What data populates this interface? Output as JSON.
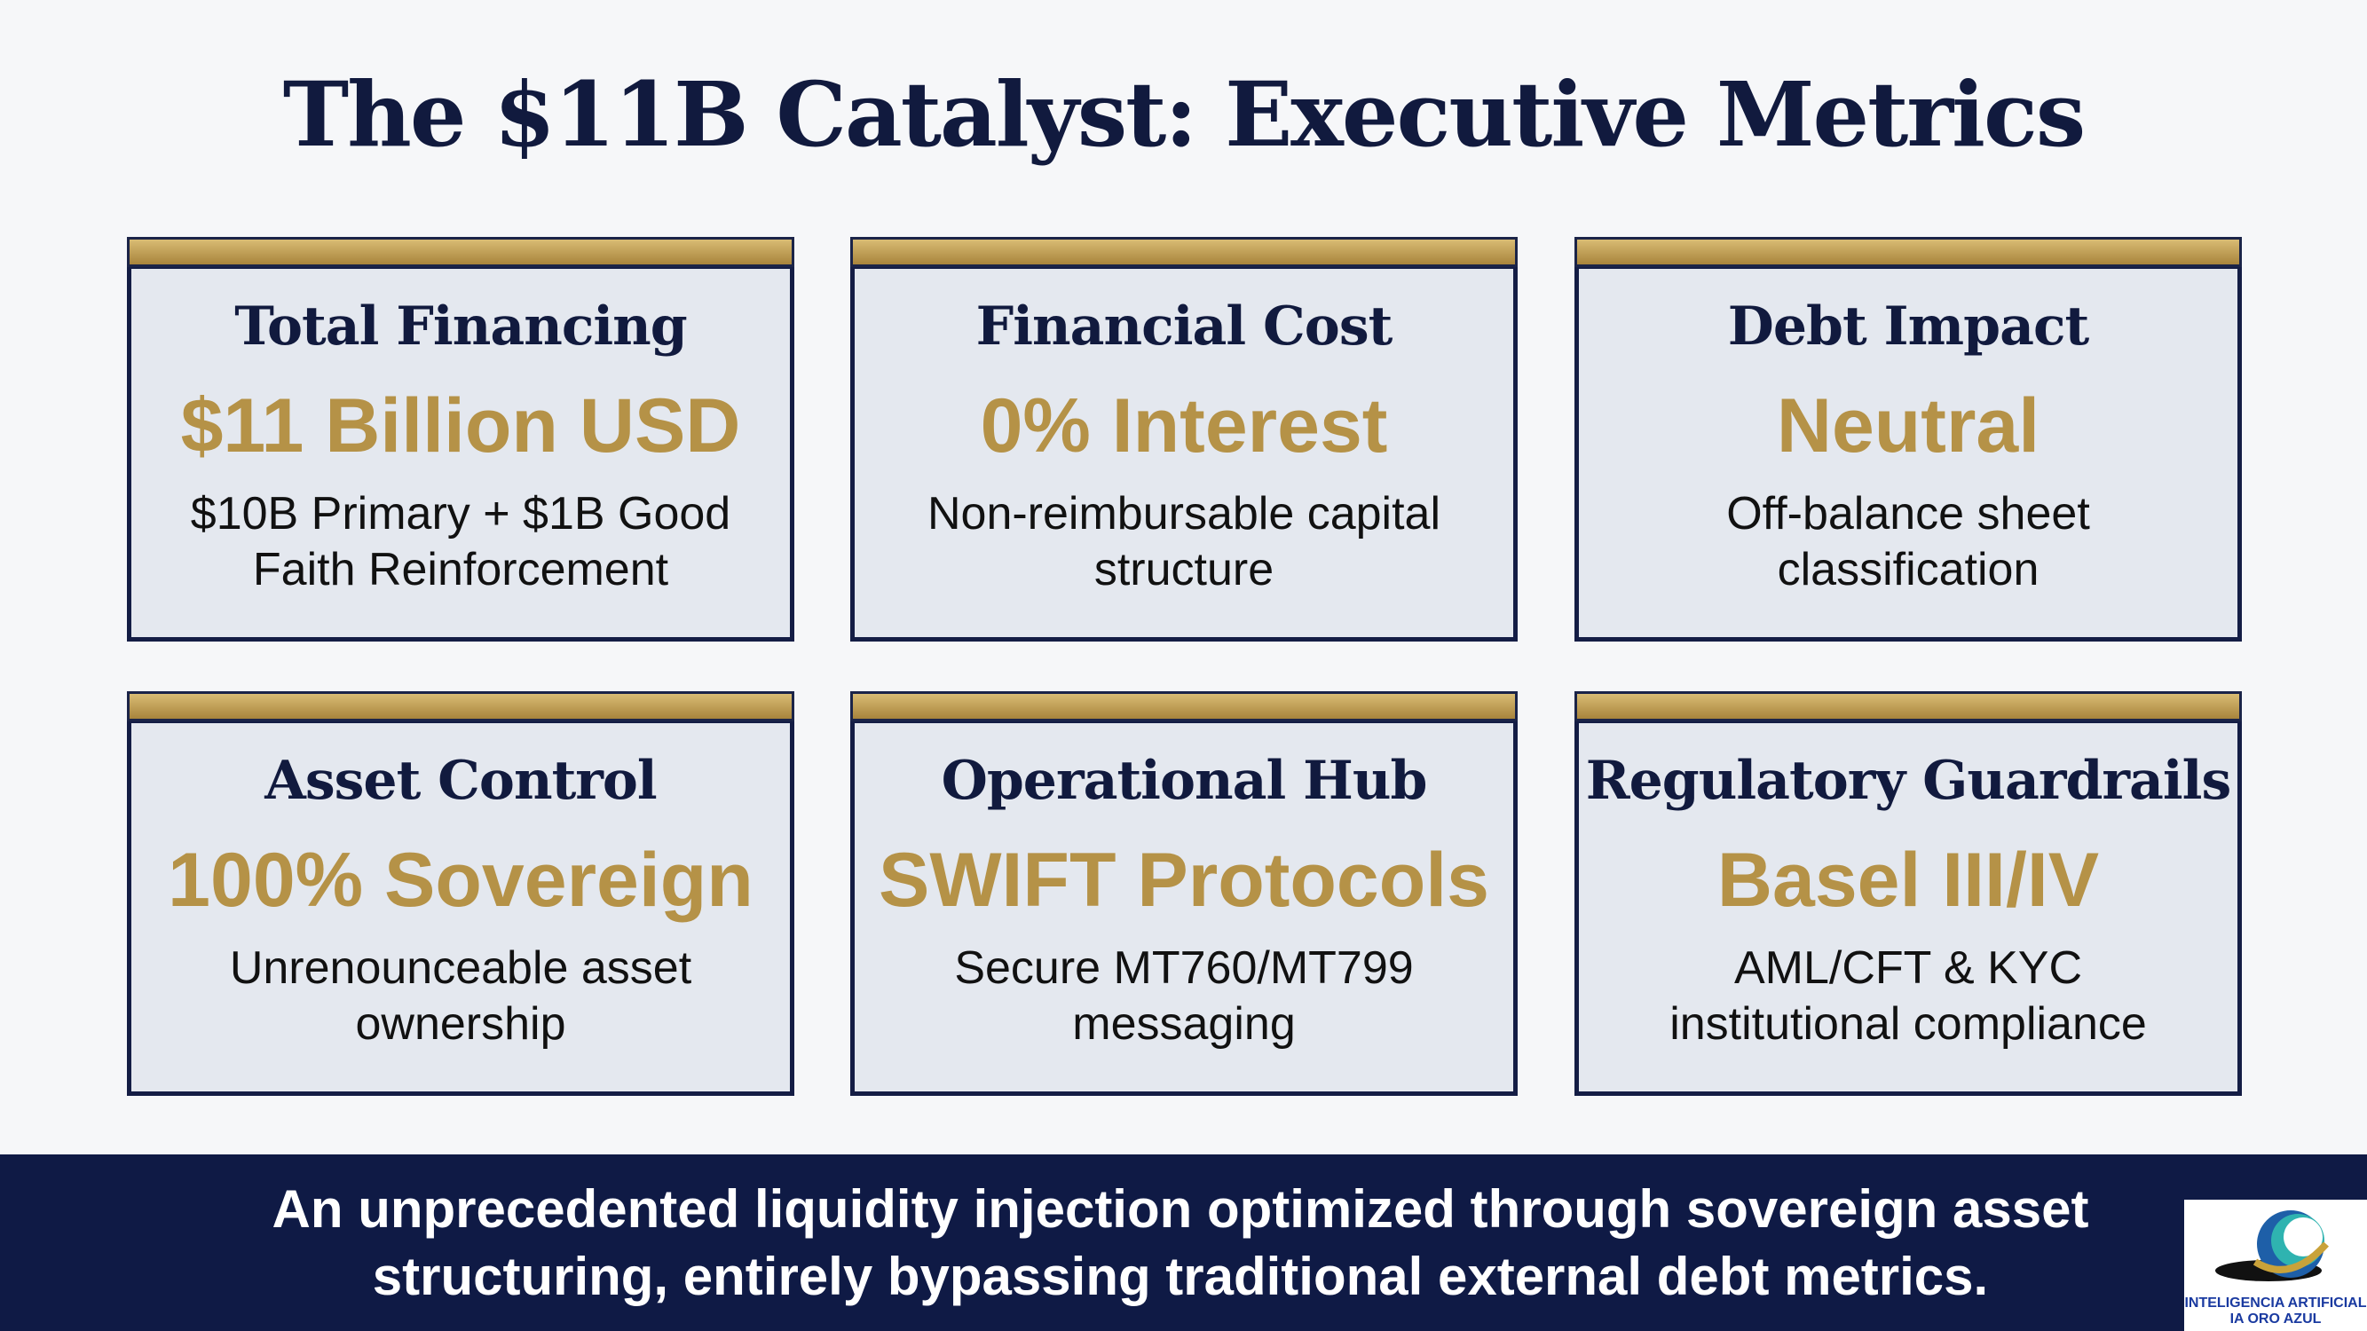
{
  "header": {
    "title": "The $11B Catalyst: Executive Metrics"
  },
  "cards": [
    {
      "heading": "Total Financing",
      "value": "$11 Billion USD",
      "description": "$10B Primary + $1B Good Faith Reinforcement"
    },
    {
      "heading": "Financial Cost",
      "value": "0% Interest",
      "description": "Non-reimbursable capital structure"
    },
    {
      "heading": "Debt Impact",
      "value": "Neutral",
      "description": "Off-balance sheet classification"
    },
    {
      "heading": "Asset Control",
      "value": "100% Sovereign",
      "description": "Unrenounceable asset ownership"
    },
    {
      "heading": "Operational Hub",
      "value": "SWIFT Protocols",
      "description": "Secure MT760/MT799 messaging"
    },
    {
      "heading": "Regulatory Guardrails",
      "value": "Basel III/IV",
      "description": "AML/CFT & KYC institutional compliance"
    }
  ],
  "footer": {
    "text": "An unprecedented liquidity injection optimized through sovereign asset structuring, entirely bypassing traditional external debt metrics."
  },
  "logo": {
    "line1": "INTELIGENCIA ARTIFICIAL",
    "line2": "IA ORO AZUL"
  }
}
